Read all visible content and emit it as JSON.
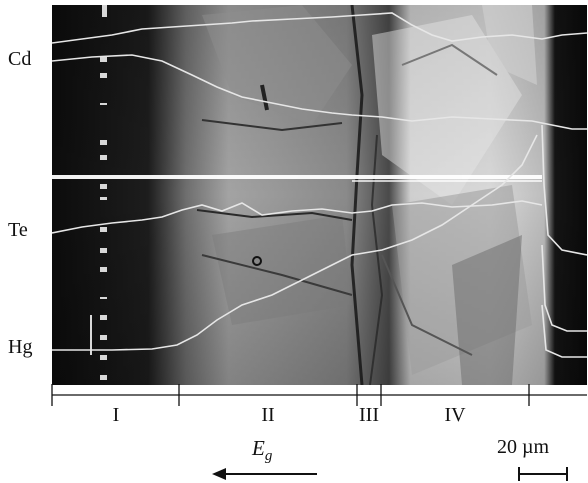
{
  "image": {
    "description_icon": "micrograph-image",
    "element_labels": {
      "cd": "Cd",
      "te": "Te",
      "hg": "Hg"
    },
    "zones": [
      "I",
      "II",
      "III",
      "IV"
    ],
    "gradient_label": {
      "symbol": "E",
      "subscript": "g"
    },
    "scale_bar": {
      "text": "20 µm"
    },
    "colors": {
      "background": "#ffffff",
      "ink": "#111111",
      "trace": "#e6e6e6",
      "band": "#ffffff"
    }
  }
}
